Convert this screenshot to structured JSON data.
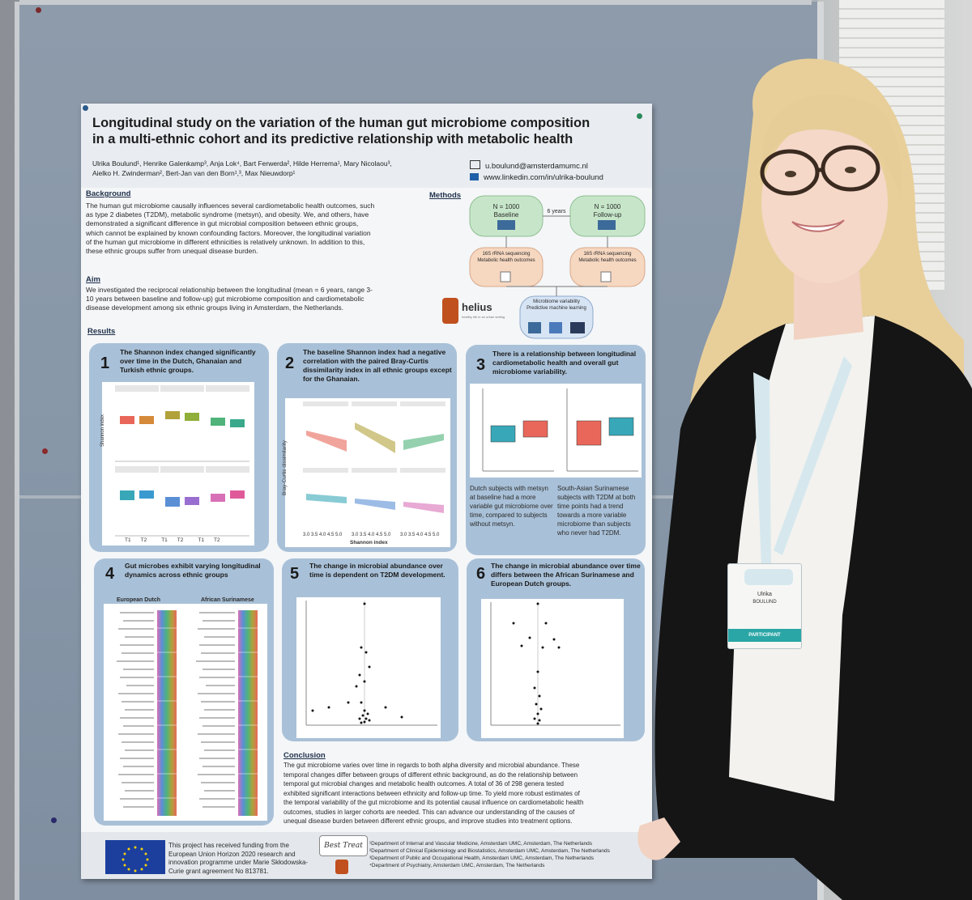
{
  "poster": {
    "title_line1": "Longitudinal study on the variation of the human gut microbiome composition",
    "title_line2": "in a multi-ethnic cohort and its predictive relationship with metabolic health",
    "authors_line1": "Ulrika Boulund¹, Henrike Galenkamp³, Anja Lok⁴, Bart Ferwerda², Hilde Herrema¹, Mary Nicolaou³,",
    "authors_line2": "Aielko H. Zwinderman², Bert-Jan van den Born¹,³, Max Nieuwdorp¹",
    "email": "u.boulund@amsterdamumc.nl",
    "linkedin": "www.linkedin.com/in/ulrika-boulund",
    "background_heading": "Background",
    "background_text": [
      "The human gut microbiome causally influences several cardiometabolic health outcomes, such",
      "as type 2 diabetes (T2DM), metabolic syndrome (metsyn), and obesity. We, and others, have",
      "demonstrated a significant difference in gut microbial composition between ethnic groups,",
      "which cannot be explained by known confounding factors. Moreover, the longitudinal variation",
      "of the human gut microbiome in different ethnicities is relatively unknown. In addition to this,",
      "these ethnic groups suffer from unequal disease burden."
    ],
    "aim_heading": "Aim",
    "aim_text": [
      "We investigated the reciprocal relationship between the longitudinal (mean = 6 years, range 3-",
      "10 years between baseline and follow-up) gut microbiome composition and cardiometabolic",
      "disease development among six ethnic groups living in Amsterdam, the Netherlands."
    ],
    "methods_heading": "Methods",
    "methods": {
      "baseline_n": "N = 1000",
      "baseline_label": "Baseline",
      "followup_n": "N = 1000",
      "followup_label": "Follow-up",
      "interval": "6 years",
      "seq_line1": "16S rRNA sequencing",
      "seq_line2": "Metabolic health outcomes",
      "ml_line1": "Microbiome variability",
      "ml_line2": "Predictive machine learning",
      "logo": "helius",
      "logo_sub": "healthy life in an urban setting"
    },
    "results_heading": "Results",
    "panels": [
      {
        "num": "1",
        "title": "The Shannon index changed significantly over time in the Dutch, Ghanaian and Turkish ethnic groups.",
        "ylabel": "Shannon index",
        "ticks": [
          "T1",
          "T2",
          "T1",
          "T2",
          "T1",
          "T2"
        ]
      },
      {
        "num": "2",
        "title": "The baseline Shannon index had a negative correlation with the paired Bray-Curtis dissimilarity index in all ethnic groups except for the Ghanaian.",
        "ylabel": "Bray-Curtis dissimilarity",
        "xlabel": "Shannon index",
        "ticks": "3.0 3.5 4.0 4.5 5.0"
      },
      {
        "num": "3",
        "title": "There is a relationship between longitudinal cardiometabolic health and overall gut microbiome variability.",
        "caption_left": "Dutch subjects with metsyn at baseline had a more variable gut microbiome over time, compared to subjects without metsyn.",
        "caption_right": "South-Asian Surinamese subjects with T2DM at both time points had a trend towards a more variable microbiome than subjects who never had T2DM."
      },
      {
        "num": "4",
        "title": "Gut microbes exhibit varying longitudinal dynamics across ethnic groups",
        "left_group": "European Dutch",
        "right_group": "African Surinamese"
      },
      {
        "num": "5",
        "title": "The change in microbial abundance over time is dependent on T2DM development."
      },
      {
        "num": "6",
        "title": "The change in microbial abundance over time differs between the African Surinamese and European Dutch groups."
      }
    ],
    "conclusion_heading": "Conclusion",
    "conclusion_text": [
      "The gut microbiome varies over time in regards to both alpha diversity and microbial abundance. These",
      "temporal changes differ between groups of different ethnic background, as do the relationship between",
      "temporal gut microbial changes and metabolic health outcomes. A total of 36 of 298 genera tested",
      "exhibited significant interactions between ethnicity and follow-up time. To yield more robust estimates of",
      "the temporal variability of the gut microbiome and its potential causal influence on cardiometabolic health",
      "outcomes, studies in larger cohorts are needed. This can advance our understanding of the causes of",
      "unequal disease burden between different ethnic groups, and improve studies into treatment options."
    ],
    "funding_text": [
      "This project has received funding from the",
      "European Union Horizon 2020 research and",
      "innovation programme under Marie Skłodowska-",
      "Curie grant agreement No 813781."
    ],
    "affiliations": [
      "¹Department of Internal and Vascular Medicine, Amsterdam UMC, Amsterdam, The Netherlands",
      "²Department of Clinical Epidemiology and Biostatistics, Amsterdam UMC, Amsterdam, The Netherlands",
      "³Department of Public and Occupational Health, Amsterdam UMC, Amsterdam, The Netherlands",
      "⁴Department of Psychiatry, Amsterdam UMC, Amsterdam, The Netherlands"
    ],
    "beat_logo": "Best Treat"
  },
  "badge": {
    "name_first": "Ulrika",
    "name_last": "BOULUND",
    "role": "PARTICIPANT"
  },
  "colors": {
    "panel_blue": "#a9c1d8",
    "box_red": "#e8675a",
    "box_orange": "#d58a3a",
    "box_olive": "#b0a13a",
    "box_green": "#4fb37a",
    "box_teal": "#38a8b8",
    "box_blue": "#5a8fd6",
    "box_purple": "#9a6ed0",
    "box_pink": "#d870b8",
    "blazer": "#151515",
    "shirt": "#f3f2ee",
    "hair": "#e8cf9a"
  }
}
